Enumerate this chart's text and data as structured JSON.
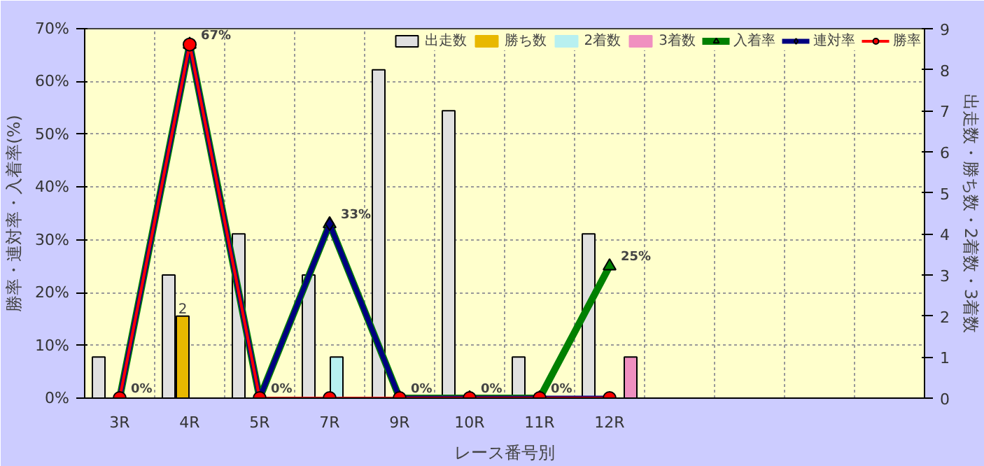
{
  "chart_data": {
    "type": "bar",
    "xlabel": "レース番号別",
    "ylabel": "勝率・連対率・入着率(%)",
    "y2label": "出走数・勝ち数・2着数・3着数",
    "categories": [
      "3R",
      "4R",
      "5R",
      "7R",
      "9R",
      "10R",
      "11R",
      "12R",
      null,
      null,
      null,
      null
    ],
    "series": [
      {
        "name": "出走数",
        "type": "bar",
        "axis": "y2",
        "color": "#e0e0e0",
        "values": [
          1,
          3,
          4,
          3,
          8,
          7,
          1,
          4,
          null,
          null,
          null,
          null
        ]
      },
      {
        "name": "勝ち数",
        "type": "bar",
        "axis": "y2",
        "color": "#e8b800",
        "values": [
          0,
          2,
          0,
          0,
          0,
          0,
          0,
          0,
          null,
          null,
          null,
          null
        ],
        "value_labels": [
          null,
          "2",
          null,
          null,
          null,
          null,
          null,
          null,
          null,
          null,
          null,
          null
        ]
      },
      {
        "name": "2着数",
        "type": "bar",
        "axis": "y2",
        "color": "#b8f0f0",
        "values": [
          0,
          0,
          0,
          1,
          0,
          0,
          0,
          0,
          null,
          null,
          null,
          null
        ]
      },
      {
        "name": "3着数",
        "type": "bar",
        "axis": "y2",
        "color": "#f090c0",
        "values": [
          0,
          0,
          0,
          0,
          0,
          0,
          0,
          1,
          null,
          null,
          null,
          null
        ]
      },
      {
        "name": "入着率",
        "type": "line",
        "marker": "triangle",
        "color": "#008000",
        "values": [
          0,
          67,
          0,
          33,
          0,
          0,
          0,
          25,
          null,
          null,
          null,
          null
        ],
        "value_labels": [
          "0%",
          "67%",
          "0%",
          "33%",
          "0%",
          "0%",
          "0%",
          "25%",
          null,
          null,
          null,
          null
        ]
      },
      {
        "name": "連対率",
        "type": "line",
        "marker": "diamond",
        "color": "#000080",
        "values": [
          0,
          67,
          0,
          33,
          0,
          0,
          0,
          0,
          null,
          null,
          null,
          null
        ]
      },
      {
        "name": "勝率",
        "type": "line",
        "marker": "circle",
        "color": "#ff0000",
        "values": [
          0,
          67,
          0,
          0,
          0,
          0,
          0,
          0,
          null,
          null,
          null,
          null
        ]
      }
    ],
    "ylim": [
      0,
      70
    ],
    "yticks": [
      {
        "value": 0,
        "label": "0%"
      },
      {
        "value": 10,
        "label": "10%"
      },
      {
        "value": 20,
        "label": "20%"
      },
      {
        "value": 30,
        "label": "30%"
      },
      {
        "value": 40,
        "label": "40%"
      },
      {
        "value": 50,
        "label": "50%"
      },
      {
        "value": 60,
        "label": "60%"
      },
      {
        "value": 70,
        "label": "70%"
      }
    ],
    "y2lim": [
      0,
      9
    ],
    "y2ticks": [
      0,
      1,
      2,
      3,
      4,
      5,
      6,
      7,
      8,
      9
    ],
    "grid": true,
    "legend": "top right"
  }
}
